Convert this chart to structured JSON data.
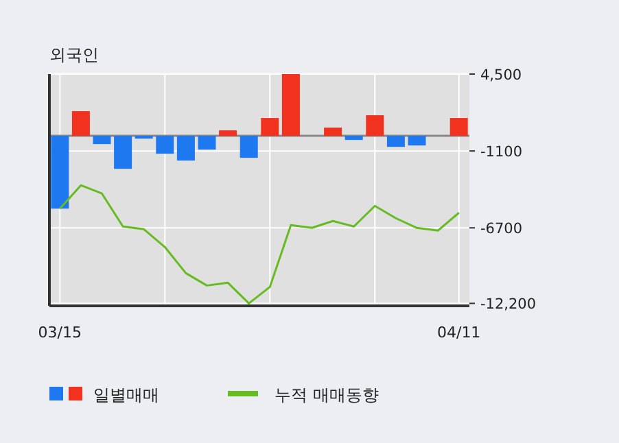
{
  "chart_data": {
    "type": "bar",
    "title": "외국인",
    "categories": [
      "03/15",
      null,
      null,
      null,
      null,
      null,
      null,
      null,
      null,
      null,
      null,
      null,
      null,
      null,
      null,
      null,
      null,
      null,
      null,
      "04/11"
    ],
    "series": [
      {
        "name": "일별매매",
        "colors": [
          "#1e78f0",
          "#f0321e",
          "#1e78f0",
          "#1e78f0",
          "#1e78f0",
          "#1e78f0",
          "#1e78f0",
          "#1e78f0",
          "#f0321e",
          "#1e78f0",
          "#f0321e",
          "#f0321e",
          "#f0321e",
          "#f0321e",
          "#1e78f0",
          "#f0321e",
          "#1e78f0",
          "#1e78f0",
          "#f0321e",
          "#f0321e"
        ],
        "values": [
          -5300,
          1800,
          -600,
          -2400,
          -200,
          -1300,
          -1800,
          -1000,
          400,
          -1600,
          1300,
          4500,
          0,
          600,
          -300,
          1500,
          -800,
          -700,
          0,
          1300
        ]
      },
      {
        "name": "누적 매매동향",
        "type": "line",
        "color": "#66bb22",
        "values": [
          -5300,
          -3600,
          -4200,
          -6600,
          -6800,
          -8100,
          -10000,
          -10900,
          -10700,
          -12200,
          -11000,
          -6500,
          -6700,
          -6200,
          -6600,
          -5100,
          -6000,
          -6700,
          -6900,
          -5600
        ]
      }
    ],
    "ylim": [
      -12380,
      4500
    ],
    "yticks": [
      {
        "value": 4500,
        "label": "4,500"
      },
      -1100,
      -6700,
      {
        "value": -12200,
        "label": "-12,200"
      }
    ],
    "grid": true,
    "legend": "bottom left",
    "marker": "none"
  }
}
